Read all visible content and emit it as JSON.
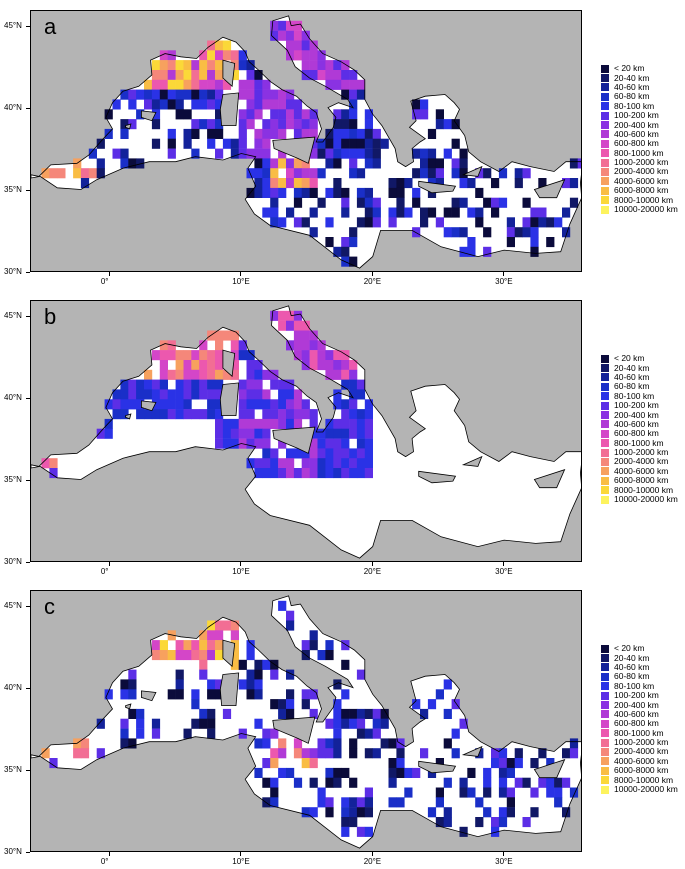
{
  "panels": [
    {
      "letter": "a",
      "variant": "full"
    },
    {
      "letter": "b",
      "variant": "west"
    },
    {
      "letter": "c",
      "variant": "full2"
    }
  ],
  "lat_ticks": [
    "45°N",
    "40°N",
    "35°N",
    "30°N"
  ],
  "lon_ticks": [
    "0°",
    "10°E",
    "20°E",
    "30°E"
  ],
  "legend": {
    "entries": [
      {
        "label": "< 20 km",
        "color": "#0b0b3b"
      },
      {
        "label": "20-40 km",
        "color": "#111866"
      },
      {
        "label": "40-60 km",
        "color": "#13229a"
      },
      {
        "label": "60-80 km",
        "color": "#1a2fc8"
      },
      {
        "label": "80-100 km",
        "color": "#2a32e6"
      },
      {
        "label": "100-200 km",
        "color": "#5c2ee6"
      },
      {
        "label": "200-400 km",
        "color": "#8a32e2"
      },
      {
        "label": "400-600 km",
        "color": "#b03ad6"
      },
      {
        "label": "600-800 km",
        "color": "#d446c8"
      },
      {
        "label": "800-1000 km",
        "color": "#ec58ae"
      },
      {
        "label": "1000-2000 km",
        "color": "#f26e94"
      },
      {
        "label": "2000-4000 km",
        "color": "#f5877a"
      },
      {
        "label": "4000-6000 km",
        "color": "#f7a15e"
      },
      {
        "label": "6000-8000 km",
        "color": "#f9bd44"
      },
      {
        "label": "8000-10000 km",
        "color": "#fbd838"
      },
      {
        "label": "10000-20000 km",
        "color": "#fdf35e"
      }
    ]
  },
  "colors": {
    "land": "#b4b4b4",
    "sea": "#ffffff",
    "coast": "#000000"
  }
}
